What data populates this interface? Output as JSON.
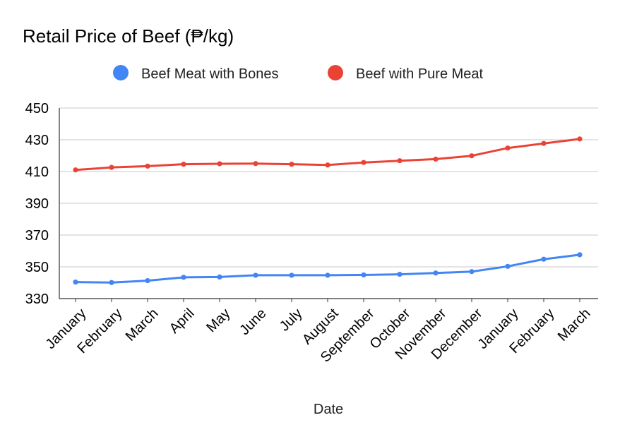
{
  "chart_data": {
    "type": "line",
    "title": "Retail Price of Beef (₱/kg)",
    "xlabel": "Date",
    "ylabel": "",
    "categories": [
      "January",
      "February",
      "March",
      "April",
      "May",
      "June",
      "July",
      "August",
      "September",
      "October",
      "November",
      "December",
      "January",
      "February",
      "March"
    ],
    "yticks": [
      330,
      350,
      370,
      390,
      410,
      430,
      450
    ],
    "ylim": [
      330,
      450
    ],
    "grid": true,
    "legend_position": "top",
    "series": [
      {
        "name": "Beef Meat with Bones",
        "color": "#4285f4",
        "values": [
          340.4,
          340.1,
          341.3,
          343.4,
          343.6,
          344.7,
          344.7,
          344.7,
          344.9,
          345.3,
          346.1,
          347.0,
          350.3,
          354.8,
          357.6
        ]
      },
      {
        "name": "Beef with Pure Meat",
        "color": "#ea4335",
        "values": [
          411.0,
          412.6,
          413.4,
          414.6,
          414.9,
          415.0,
          414.6,
          414.1,
          415.7,
          416.8,
          417.8,
          419.9,
          424.8,
          427.7,
          430.5
        ]
      }
    ]
  }
}
